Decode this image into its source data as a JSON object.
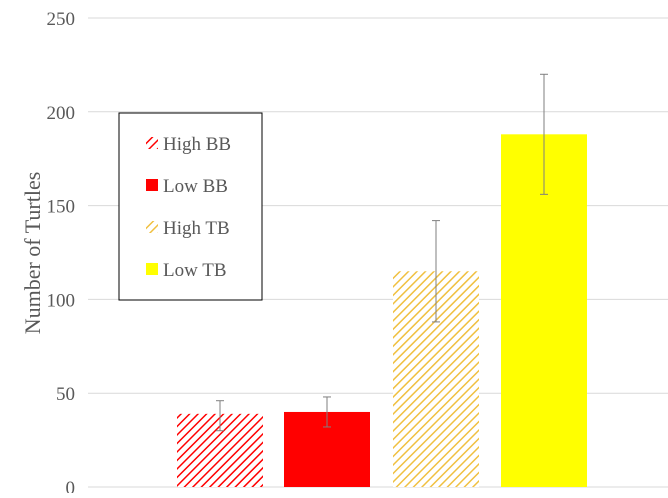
{
  "colors": {
    "grid": "#d9d9d9",
    "axis_text": "#595959",
    "error_bar": "#7f7f7f",
    "red": "#ff0000",
    "yellow": "#ffff00",
    "hatch_yellow": "#f0c040"
  },
  "chart_data": {
    "type": "bar",
    "title": "",
    "xlabel": "",
    "ylabel": "Number of  Turtles",
    "ylim": [
      0,
      250
    ],
    "yticks": [
      "0",
      "50",
      "100",
      "150",
      "200",
      "250"
    ],
    "grid": true,
    "legend_position": "top-left",
    "series": [
      {
        "name": "High BB",
        "value": 39,
        "error_low": 30,
        "error_high": 46,
        "fill": "hatch",
        "color": "#ff0000"
      },
      {
        "name": "Low BB",
        "value": 40,
        "error_low": 32,
        "error_high": 48,
        "fill": "solid",
        "color": "#ff0000"
      },
      {
        "name": "High TB",
        "value": 115,
        "error_low": 88,
        "error_high": 142,
        "fill": "hatch",
        "color": "#f0c040"
      },
      {
        "name": "Low TB",
        "value": 188,
        "error_low": 156,
        "error_high": 220,
        "fill": "solid",
        "color": "#ffff00"
      }
    ]
  }
}
